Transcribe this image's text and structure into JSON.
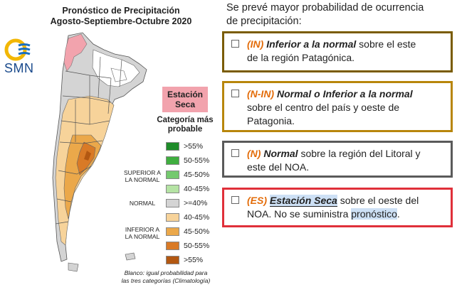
{
  "map": {
    "title_line1": "Pronóstico de Precipitación",
    "title_line2": "Agosto-Septiembre-Octubre 2020",
    "logo_text": "SMN",
    "dry_season_label_line1": "Estación",
    "dry_season_label_line2": "Seca",
    "legend_title_line1": "Categoría más",
    "legend_title_line2": "probable",
    "legend_groups": {
      "above": [
        "SUPERIOR A",
        "LA NORMAL"
      ],
      "normal": "NORMAL",
      "below": [
        "INFERIOR A",
        "LA NORMAL"
      ]
    },
    "legend": [
      {
        "label": ">55%",
        "color": "#1e8c2a"
      },
      {
        "label": "50-55%",
        "color": "#3fae3f"
      },
      {
        "label": "45-50%",
        "color": "#74c96e"
      },
      {
        "label": "40-45%",
        "color": "#b5e3a4"
      },
      {
        "label": ">=40%",
        "color": "#d4d4d4"
      },
      {
        "label": "40-45%",
        "color": "#f7d39a"
      },
      {
        "label": "45-50%",
        "color": "#eba84a"
      },
      {
        "label": "50-55%",
        "color": "#d97a26"
      },
      {
        "label": ">55%",
        "color": "#b35812"
      }
    ],
    "footnote_line1": "Blanco: igual probabilidad para",
    "footnote_line2": "las tres categorías (Climatología)"
  },
  "intro": {
    "line1": "Se prevé mayor probabilidad de ocurrencia",
    "line2": "de precipitación:"
  },
  "notes": [
    {
      "tag": "(IN)",
      "title": "Inferior a la normal",
      "text1": " sobre el este",
      "text2": "de la región Patagónica.",
      "border": "#7a5c00"
    },
    {
      "tag": "(N-IN)",
      "title": "Normal o Inferior a la normal",
      "text1": "",
      "text2": "sobre el centro del país y oeste de",
      "text3": "Patagonia.",
      "border": "#b8860b"
    },
    {
      "tag": "(N)",
      "title": "Normal",
      "text1": " sobre la región del Litoral y",
      "text2": "este del NOA.",
      "border": "#5a5a5a"
    },
    {
      "tag": "(ES)",
      "title": "Estación Seca",
      "text1": " sobre el oeste del",
      "text2a": "NOA. No se suministra ",
      "text2b": "pronóstico",
      "text2c": ".",
      "border": "#e0303a"
    }
  ]
}
